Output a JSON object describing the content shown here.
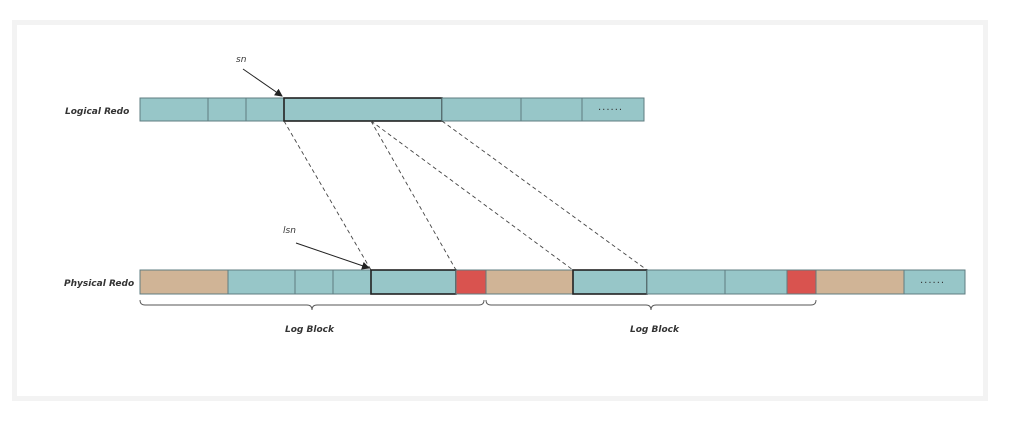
{
  "labels": {
    "logical_row": "Logical Redo",
    "physical_row": "Physical Redo",
    "sn": "sn",
    "lsn": "lsn",
    "log_block_1": "Log Block",
    "log_block_2": "Log Block",
    "ellipsis_logical": "......",
    "ellipsis_physical": "......"
  },
  "colors": {
    "redo_cell": "#97c6c8",
    "header_cell": "#d0b496",
    "trailer_cell": "#d9534f",
    "cell_border": "#5f7c80",
    "highlight_border": "#222222",
    "connector": "#444444",
    "panel_border": "#f3f3f3"
  }
}
